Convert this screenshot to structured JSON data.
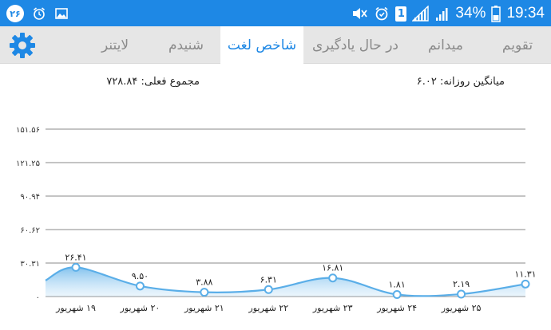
{
  "status_bar": {
    "notification_count": "۲۶",
    "battery_percent": "34%",
    "time": "19:34",
    "sim_label": "1",
    "icons": [
      "alarm-icon",
      "image-icon",
      "mute-icon",
      "alarm-icon",
      "signal-icon",
      "battery-icon"
    ]
  },
  "tabs": [
    {
      "label": "تقویم",
      "active": false
    },
    {
      "label": "میدانم",
      "active": false
    },
    {
      "label": "در حال یادگیری",
      "active": false
    },
    {
      "label": "شاخص لغت",
      "active": true
    },
    {
      "label": "شنیدم",
      "active": false
    },
    {
      "label": "لایتنر",
      "active": false
    }
  ],
  "stats": {
    "daily_average": "میانگین روزانه: ۶.۰۲",
    "total_current": "مجموع فعلی: ۷۲۸.۸۴"
  },
  "colors": {
    "accent": "#1e88e5",
    "line": "#5aaee8",
    "area_fill": "#bfe0f7",
    "tab_bg": "#e6e6e6"
  },
  "chart_data": {
    "type": "area",
    "title": "",
    "xlabel": "",
    "ylabel": "",
    "ylim": [
      0,
      151.56
    ],
    "yticks": [
      "۱۵۱.۵۶",
      "۱۲۱.۲۵",
      "۹۰.۹۴",
      "۶۰.۶۲",
      "۳۰.۳۱",
      "۰"
    ],
    "ytick_values": [
      151.56,
      121.25,
      90.94,
      60.62,
      30.31,
      0
    ],
    "categories": [
      "۱۹ شهریور",
      "۲۰ شهریور",
      "۲۱ شهریور",
      "۲۲ شهریور",
      "۲۳ شهریور",
      "۲۴ شهریور",
      "۲۵ شهریور"
    ],
    "points": [
      {
        "x": "۱۹ شهریور",
        "y": 26.41,
        "label": "۲۶.۴۱"
      },
      {
        "x": "۲۰ شهریور",
        "y": 9.5,
        "label": "۹.۵۰"
      },
      {
        "x": "۲۱ شهریور",
        "y": 3.88,
        "label": "۳.۸۸"
      },
      {
        "x": "۲۲ شهریور",
        "y": 6.31,
        "label": "۶.۳۱"
      },
      {
        "x": "۲۳ شهریور",
        "y": 16.81,
        "label": "۱۶.۸۱"
      },
      {
        "x": "۲۴ شهریور",
        "y": 1.81,
        "label": "۱.۸۱"
      },
      {
        "x": "۲۵ شهریور",
        "y": 2.19,
        "label": "۲.۱۹"
      },
      {
        "x": "",
        "y": 11.31,
        "label": "۱۱.۳۱"
      }
    ],
    "grid": true,
    "legend": "none"
  }
}
